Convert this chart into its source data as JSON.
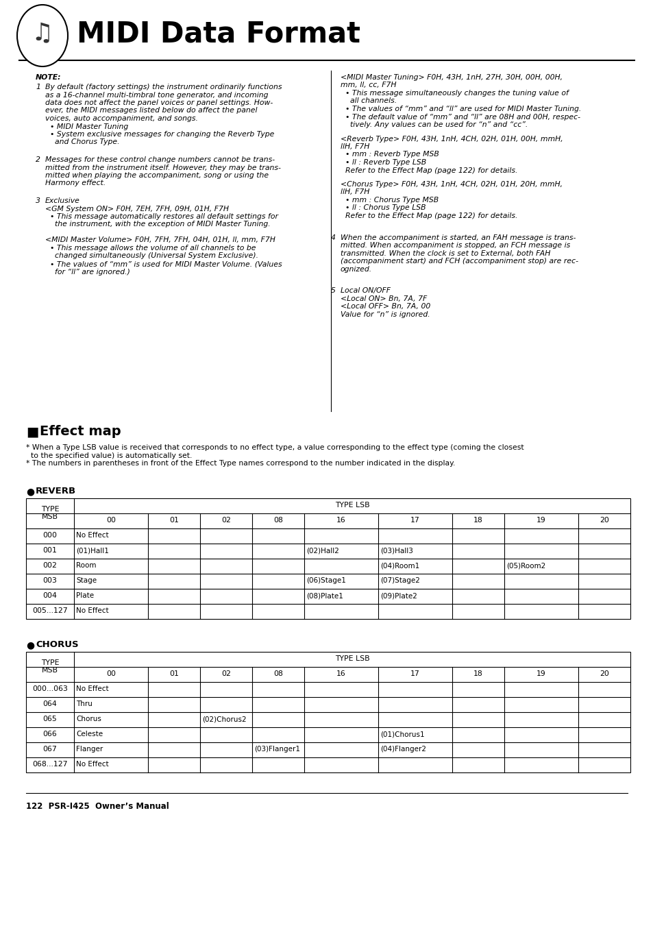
{
  "title": "MIDI Data Format",
  "bg_color": "#ffffff",
  "text_color": "#000000",
  "reverb_col_headers": [
    "00",
    "01",
    "02",
    "08",
    "16",
    "17",
    "18",
    "19",
    "20"
  ],
  "reverb_rows": [
    {
      "msb": "000",
      "cells": {
        "00": "No Effect",
        "01": "",
        "02": "",
        "08": "",
        "16": "",
        "17": "",
        "18": "",
        "19": "",
        "20": ""
      }
    },
    {
      "msb": "001",
      "cells": {
        "00": "(01)Hall1",
        "01": "",
        "02": "",
        "08": "",
        "16": "(02)Hall2",
        "17": "(03)Hall3",
        "18": "",
        "19": "",
        "20": ""
      }
    },
    {
      "msb": "002",
      "cells": {
        "00": "Room",
        "01": "",
        "02": "",
        "08": "",
        "16": "",
        "17": "(04)Room1",
        "18": "",
        "19": "(05)Room2",
        "20": ""
      }
    },
    {
      "msb": "003",
      "cells": {
        "00": "Stage",
        "01": "",
        "02": "",
        "08": "",
        "16": "(06)Stage1",
        "17": "(07)Stage2",
        "18": "",
        "19": "",
        "20": ""
      }
    },
    {
      "msb": "004",
      "cells": {
        "00": "Plate",
        "01": "",
        "02": "",
        "08": "",
        "16": "(08)Plate1",
        "17": "(09)Plate2",
        "18": "",
        "19": "",
        "20": ""
      }
    },
    {
      "msb": "005...127",
      "cells": {
        "00": "No Effect",
        "01": "",
        "02": "",
        "08": "",
        "16": "",
        "17": "",
        "18": "",
        "19": "",
        "20": ""
      }
    }
  ],
  "chorus_col_headers": [
    "00",
    "01",
    "02",
    "08",
    "16",
    "17",
    "18",
    "19",
    "20"
  ],
  "chorus_rows": [
    {
      "msb": "000...063",
      "cells": {
        "00": "No Effect",
        "01": "",
        "02": "",
        "08": "",
        "16": "",
        "17": "",
        "18": "",
        "19": "",
        "20": ""
      }
    },
    {
      "msb": "064",
      "cells": {
        "00": "Thru",
        "01": "",
        "02": "",
        "08": "",
        "16": "",
        "17": "",
        "18": "",
        "19": "",
        "20": ""
      }
    },
    {
      "msb": "065",
      "cells": {
        "00": "Chorus",
        "01": "",
        "02": "(02)Chorus2",
        "08": "",
        "16": "",
        "17": "",
        "18": "",
        "19": "",
        "20": ""
      }
    },
    {
      "msb": "066",
      "cells": {
        "00": "Celeste",
        "01": "",
        "02": "",
        "08": "",
        "16": "",
        "17": "(01)Chorus1",
        "18": "",
        "19": "",
        "20": ""
      }
    },
    {
      "msb": "067",
      "cells": {
        "00": "Flanger",
        "01": "",
        "02": "",
        "08": "(03)Flanger1",
        "16": "",
        "17": "(04)Flanger2",
        "18": "",
        "19": "",
        "20": ""
      }
    },
    {
      "msb": "068...127",
      "cells": {
        "00": "No Effect",
        "01": "",
        "02": "",
        "08": "",
        "16": "",
        "17": "",
        "18": "",
        "19": "",
        "20": ""
      }
    }
  ],
  "footer_text": "122  PSR-I425  Owner’s Manual"
}
